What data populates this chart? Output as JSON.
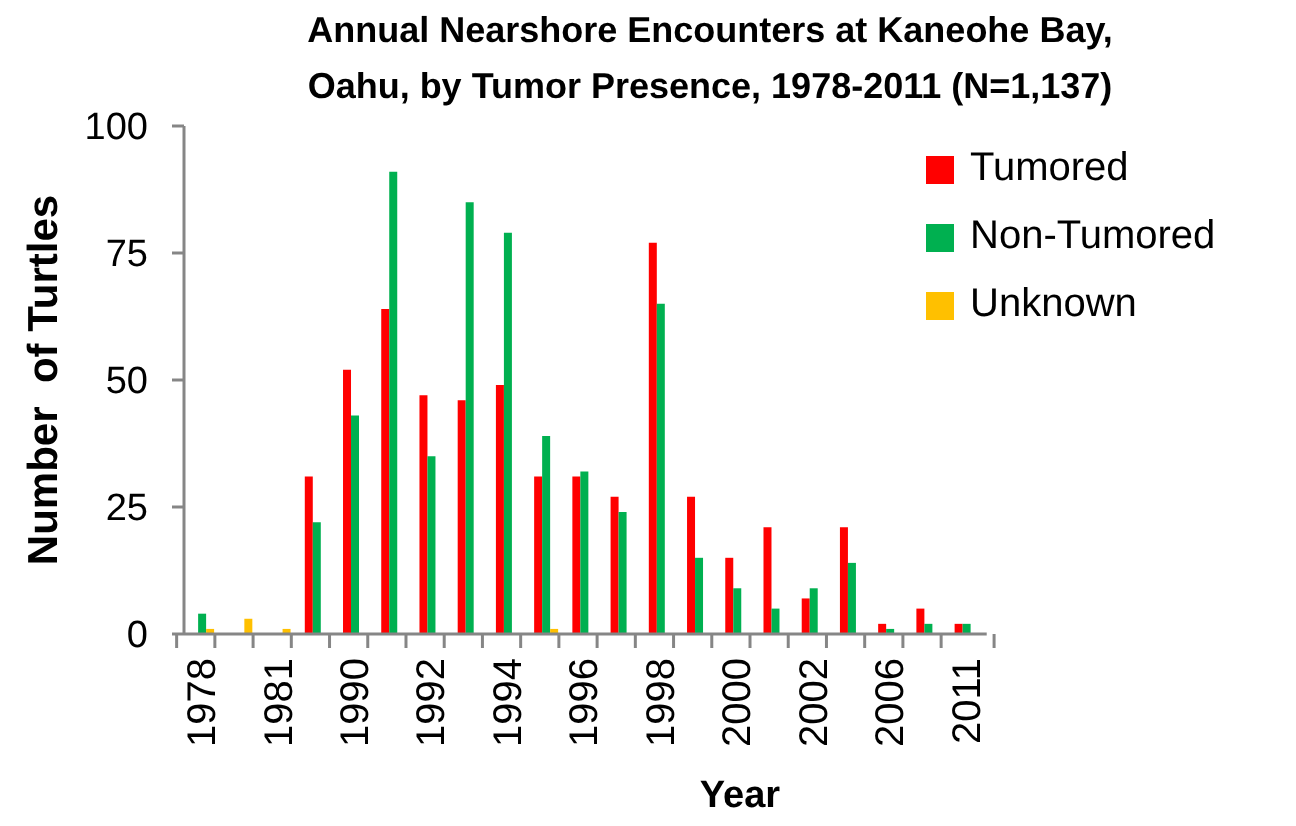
{
  "chart_data": {
    "type": "bar",
    "title": "Annual Nearshore Encounters at Kaneohe Bay,\nOahu, by Tumor Presence, 1978-2011 (N=1,137)",
    "xlabel": "Year",
    "ylabel": "Number  of Turtles",
    "categories": [
      "1978",
      null,
      "1981",
      null,
      "1990",
      null,
      "1992",
      null,
      "1994",
      null,
      "1996",
      null,
      "1998",
      null,
      "2000",
      null,
      "2002",
      null,
      "2006",
      null,
      "2011"
    ],
    "series": [
      {
        "name": "Tumored",
        "color": "#ff0000",
        "values": [
          0,
          0,
          0,
          31,
          52,
          64,
          47,
          46,
          49,
          31,
          31,
          27,
          77,
          27,
          15,
          21,
          7,
          21,
          2,
          5,
          2
        ]
      },
      {
        "name": "Non-Tumored",
        "color": "#00b050",
        "values": [
          4,
          0,
          0,
          22,
          43,
          91,
          35,
          85,
          79,
          39,
          32,
          24,
          65,
          15,
          9,
          5,
          9,
          14,
          1,
          2,
          2
        ]
      },
      {
        "name": "Unknown",
        "color": "#ffc000",
        "values": [
          1,
          3,
          1,
          0,
          0,
          0,
          0,
          0,
          0,
          1,
          0,
          0,
          0,
          0,
          0,
          0,
          0,
          0,
          0,
          0,
          0
        ]
      }
    ],
    "ylim": [
      0,
      100
    ],
    "yticks": [
      0,
      25,
      50,
      75,
      100
    ],
    "grid": false,
    "legend": "top right"
  }
}
